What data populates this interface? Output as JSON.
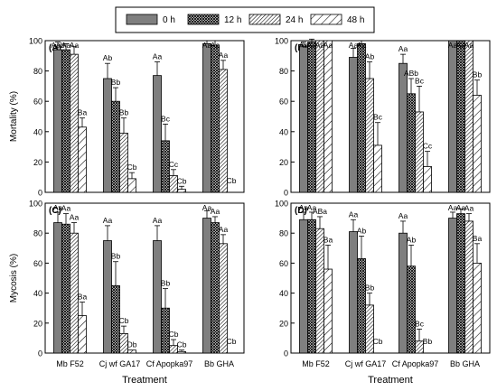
{
  "legend": {
    "position": "top-center",
    "entries": [
      {
        "label": "0 h",
        "pattern": "solid"
      },
      {
        "label": "12 h",
        "pattern": "crosshatch"
      },
      {
        "label": "24 h",
        "pattern": "hatch-dense"
      },
      {
        "label": "48 h",
        "pattern": "hatch-sparse"
      }
    ]
  },
  "colors": {
    "solid_fill": "#7f7f7f",
    "pattern_ink": "#000000",
    "axis": "#000000"
  },
  "chart_data": [
    {
      "type": "bar",
      "panel": "(A)",
      "ylabel": "Mortality (%)",
      "xlabel": "",
      "ylim": [
        0,
        100
      ],
      "yticks": [
        0,
        20,
        40,
        60,
        80,
        100
      ],
      "categories": [
        "Mb F52",
        "Cj wf GA17",
        "Cf Apopka97",
        "Bb GHA"
      ],
      "show_category_labels": false,
      "series": [
        {
          "name": "0 h",
          "values": [
            94,
            75,
            77,
            98
          ],
          "errors": [
            5,
            10,
            9,
            2
          ],
          "labels": [
            "Aab",
            "Ab",
            "Aa",
            "Aa"
          ]
        },
        {
          "name": "12 h",
          "values": [
            94,
            60,
            34,
            97
          ],
          "errors": [
            4,
            9,
            11,
            3
          ],
          "labels": [
            "Aa",
            "Bb",
            "Bc",
            "Aa"
          ]
        },
        {
          "name": "24 h",
          "values": [
            91,
            39,
            11,
            81
          ],
          "errors": [
            5,
            10,
            4,
            6
          ],
          "labels": [
            "Aa",
            "Bb",
            "Cc",
            "Aa"
          ]
        },
        {
          "name": "48 h",
          "values": [
            43,
            9,
            2,
            0
          ],
          "errors": [
            6,
            4,
            2,
            0
          ],
          "labels": [
            "Ba",
            "Cb",
            "Cb",
            "Cb"
          ]
        }
      ]
    },
    {
      "type": "bar",
      "panel": "(B)",
      "ylabel": "",
      "xlabel": "",
      "ylim": [
        0,
        100
      ],
      "yticks": [
        0,
        20,
        40,
        60,
        80,
        100
      ],
      "categories": [
        "Mb F52",
        "Cj wf GA17",
        "Cf Apopka97",
        "Bb GHA"
      ],
      "show_category_labels": false,
      "series": [
        {
          "name": "0 h",
          "values": [
            96,
            89,
            85,
            100
          ],
          "errors": [
            3,
            6,
            6,
            0
          ],
          "labels": [
            "Aa",
            "Aa",
            "Aa",
            "Aa"
          ]
        },
        {
          "name": "12 h",
          "values": [
            99,
            98,
            65,
            100
          ],
          "errors": [
            2,
            2,
            10,
            0
          ],
          "labels": [
            "Aa",
            "Aa",
            "ABb",
            "Aa"
          ]
        },
        {
          "name": "24 h",
          "values": [
            100,
            75,
            53,
            100
          ],
          "errors": [
            0,
            11,
            17,
            0
          ],
          "labels": [
            "Aa",
            "Ab",
            "Bc",
            "Aa"
          ]
        },
        {
          "name": "48 h",
          "values": [
            100,
            31,
            17,
            64
          ],
          "errors": [
            0,
            15,
            10,
            10
          ],
          "labels": [
            "Aa",
            "Bc",
            "Cc",
            "Bb"
          ]
        }
      ]
    },
    {
      "type": "bar",
      "panel": "(C)",
      "ylabel": "Mycosis (%)",
      "xlabel": "Treatment",
      "ylim": [
        0,
        100
      ],
      "yticks": [
        0,
        20,
        40,
        60,
        80,
        100
      ],
      "categories": [
        "Mb F52",
        "Cj wf GA17",
        "Cf Apopka97",
        "Bb GHA"
      ],
      "show_category_labels": true,
      "series": [
        {
          "name": "0 h",
          "values": [
            87,
            75,
            75,
            90
          ],
          "errors": [
            7,
            10,
            10,
            5
          ],
          "labels": [
            "Aa",
            "Aa",
            "Aa",
            "Aa"
          ]
        },
        {
          "name": "12 h",
          "values": [
            86,
            45,
            30,
            87
          ],
          "errors": [
            7,
            16,
            13,
            4
          ],
          "labels": [
            "Aa",
            "Bb",
            "Bb",
            "Aa"
          ]
        },
        {
          "name": "24 h",
          "values": [
            80,
            13,
            5,
            73
          ],
          "errors": [
            7,
            5,
            4,
            6
          ],
          "labels": [
            "Aa",
            "Cb",
            "Cb",
            "Aa"
          ]
        },
        {
          "name": "48 h",
          "values": [
            25,
            2,
            1,
            0
          ],
          "errors": [
            9,
            0,
            1,
            0
          ],
          "labels": [
            "Ba",
            "Db",
            "Cb",
            "Cb"
          ]
        }
      ]
    },
    {
      "type": "bar",
      "panel": "(D)",
      "ylabel": "",
      "xlabel": "Treatment",
      "ylim": [
        0,
        100
      ],
      "yticks": [
        0,
        20,
        40,
        60,
        80,
        100
      ],
      "categories": [
        "Mb F52",
        "Cj wf GA17",
        "Cf Apopka97",
        "Bb GHA"
      ],
      "show_category_labels": true,
      "series": [
        {
          "name": "0 h",
          "values": [
            89,
            81,
            80,
            90
          ],
          "errors": [
            5,
            8,
            8,
            4
          ],
          "labels": [
            "Aa",
            "Aa",
            "Aa",
            "Aa"
          ]
        },
        {
          "name": "12 h",
          "values": [
            89,
            63,
            58,
            93
          ],
          "errors": [
            5,
            15,
            14,
            3
          ],
          "labels": [
            "Aa",
            "Ab",
            "Ab",
            "Aa"
          ]
        },
        {
          "name": "24 h",
          "values": [
            83,
            32,
            8,
            88
          ],
          "errors": [
            8,
            8,
            8,
            5
          ],
          "labels": [
            "ABa",
            "Bb",
            "Bc",
            "Aa"
          ]
        },
        {
          "name": "48 h",
          "values": [
            56,
            0,
            0,
            60
          ],
          "errors": [
            16,
            0,
            0,
            13
          ],
          "labels": [
            "Ba",
            "Cb",
            "Bb",
            "Ba"
          ]
        }
      ]
    }
  ]
}
